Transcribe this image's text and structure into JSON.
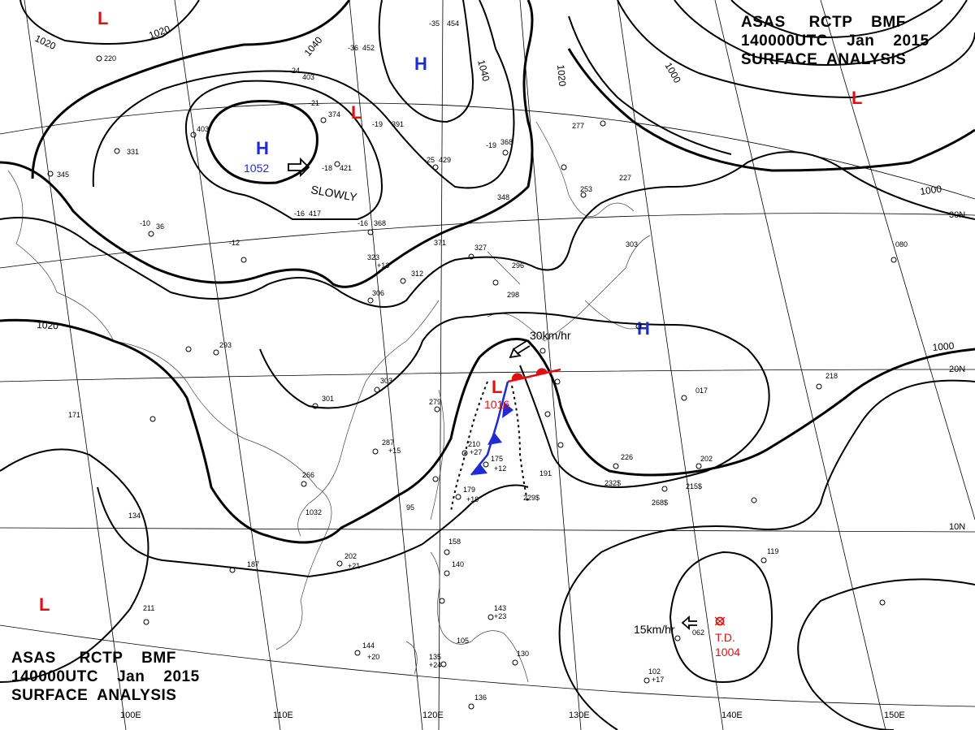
{
  "title": {
    "line1": "ASAS     RCTP    BMF",
    "line2": "140000UTC    Jan    2015",
    "line3": "SURFACE  ANALYSIS"
  },
  "isobar_labels": [
    "1020",
    "1020",
    "1040",
    "1040",
    "1020",
    "1000",
    "1000",
    "1020",
    "1000"
  ],
  "latitude_labels": [
    "30N",
    "20N",
    "10N"
  ],
  "longitude_labels": [
    "100E",
    "110E",
    "120E",
    "130E",
    "140E",
    "150E"
  ],
  "pressure_centers": [
    {
      "type": "H",
      "value": "1052",
      "color": "#1f2bd6"
    },
    {
      "type": "H",
      "value": "",
      "color": "#1f2bd6"
    },
    {
      "type": "H",
      "value": "",
      "color": "#1f2bd6"
    },
    {
      "type": "L",
      "value": "1016",
      "color": "#e01010"
    },
    {
      "type": "L",
      "value": "",
      "color": "#e01010"
    },
    {
      "type": "L",
      "value": "",
      "color": "#e01010"
    },
    {
      "type": "L",
      "value": "",
      "color": "#e01010"
    },
    {
      "type": "L",
      "value": "",
      "color": "#e01010"
    }
  ],
  "tropical_depression": {
    "label": "T.D.",
    "value": "1004",
    "color": "#e01010"
  },
  "movements": [
    {
      "text": "SLOWLY"
    },
    {
      "text": "30km/hr"
    },
    {
      "text": "15km/hr"
    }
  ],
  "station_reports": [
    "454",
    "-35",
    "220",
    "-24",
    "403",
    "-36",
    "452",
    "-21",
    "374",
    "-19",
    "391",
    "403",
    "331",
    "345",
    "-18",
    "421",
    "-25",
    "429",
    "-19",
    "368",
    "277",
    "-16",
    "417",
    "-16",
    "368",
    "348",
    "227",
    "253",
    "-10",
    "36",
    "-12",
    "371",
    "327",
    "323",
    "312",
    "306",
    "296",
    "298",
    "303",
    "080",
    "293",
    "303",
    "301",
    "279",
    "287",
    "266",
    "210",
    "175",
    "191",
    "179",
    "226",
    "202",
    "232$",
    "215$",
    "229$",
    "268$",
    "134",
    "187",
    "202",
    "158",
    "140",
    "143",
    "119",
    "062",
    "144",
    "135",
    "105",
    "130",
    "102",
    "136",
    "171",
    "218",
    "017",
    "211",
    "1032",
    "95",
    "+13",
    "+12",
    "+20",
    "+21",
    "+23",
    "+27",
    "+15",
    "+19",
    "+17",
    "+24"
  ]
}
